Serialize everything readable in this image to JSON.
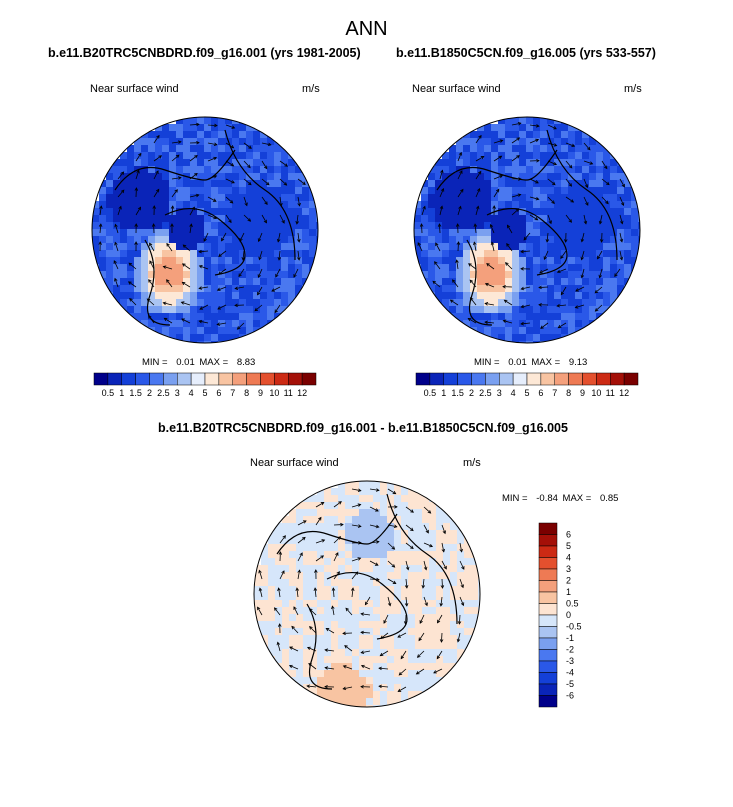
{
  "title": "ANN",
  "panels": [
    {
      "case": "b.e11.B20TRC5CNBDRD.f09_g16.001 (yrs 1981-2005)",
      "variable": "Near surface wind",
      "units": "m/s",
      "min_label": "MIN =",
      "min": "0.01",
      "max_label": "MAX =",
      "max": "8.83"
    },
    {
      "case": "b.e11.B1850C5CN.f09_g16.005 (yrs 533-557)",
      "variable": "Near surface wind",
      "units": "m/s",
      "min_label": "MIN =",
      "min": "0.01",
      "max_label": "MAX =",
      "max": "9.13"
    }
  ],
  "difference": {
    "title": "b.e11.B20TRC5CNBDRD.f09_g16.001 - b.e11.B1850C5CN.f09_g16.005",
    "variable": "Near surface wind",
    "units": "m/s",
    "min_label": "MIN =",
    "min": "-0.84",
    "max_label": "MAX =",
    "max": "0.85"
  },
  "chart_data": [
    {
      "type": "heatmap",
      "projection": "north polar stereographic",
      "title": "b.e11.B20TRC5CNBDRD.f09_g16.001 (yrs 1981-2005)",
      "field": "Near surface wind (m/s)",
      "min": 0.01,
      "max": 8.83,
      "levels": [
        "0.5",
        "1",
        "1.5",
        "2",
        "2.5",
        "3",
        "4",
        "5",
        "6",
        "7",
        "8",
        "9",
        "10",
        "11",
        "12"
      ],
      "colors": [
        "#00008a",
        "#0a24b8",
        "#1440d8",
        "#2a58e8",
        "#4a78f0",
        "#7aa0f0",
        "#aac4f2",
        "#e6eefc",
        "#fde8d6",
        "#f8c4a2",
        "#f4a07c",
        "#ee7a54",
        "#e4502e",
        "#cc2a14",
        "#a41008",
        "#7a0000"
      ]
    },
    {
      "type": "heatmap",
      "projection": "north polar stereographic",
      "title": "b.e11.B1850C5CN.f09_g16.005 (yrs 533-557)",
      "field": "Near surface wind (m/s)",
      "min": 0.01,
      "max": 9.13,
      "levels": [
        "0.5",
        "1",
        "1.5",
        "2",
        "2.5",
        "3",
        "4",
        "5",
        "6",
        "7",
        "8",
        "9",
        "10",
        "11",
        "12"
      ],
      "colors": [
        "#00008a",
        "#0a24b8",
        "#1440d8",
        "#2a58e8",
        "#4a78f0",
        "#7aa0f0",
        "#aac4f2",
        "#e6eefc",
        "#fde8d6",
        "#f8c4a2",
        "#f4a07c",
        "#ee7a54",
        "#e4502e",
        "#cc2a14",
        "#a41008",
        "#7a0000"
      ]
    },
    {
      "type": "heatmap",
      "projection": "north polar stereographic",
      "title": "b.e11.B20TRC5CNBDRD.f09_g16.001 - b.e11.B1850C5CN.f09_g16.005",
      "field": "Near surface wind difference (m/s)",
      "min": -0.84,
      "max": 0.85,
      "levels": [
        "-6",
        "-5",
        "-4",
        "-3",
        "-2",
        "-1",
        "-0.5",
        "0",
        "0.5",
        "1",
        "2",
        "3",
        "4",
        "5",
        "6"
      ],
      "colors": [
        "#00008a",
        "#0a24b8",
        "#1440d8",
        "#2a58e8",
        "#4a78f0",
        "#7aa0f0",
        "#aac4f2",
        "#d6e6fa",
        "#fde4d2",
        "#f8c4a2",
        "#f4a07c",
        "#ee7a54",
        "#e4502e",
        "#cc2a14",
        "#a41008",
        "#7a0000"
      ]
    }
  ]
}
